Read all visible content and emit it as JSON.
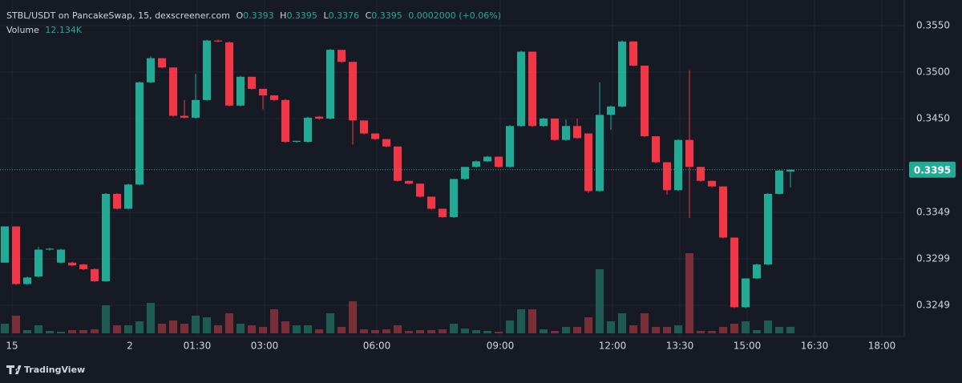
{
  "chart_data": {
    "type": "candlestick",
    "title": "STBL/USDT on PancakeSwap, 15, dexscreener.com",
    "legend": {
      "o_label": "O",
      "o": 0.3393,
      "h_label": "H",
      "h": 0.3395,
      "l_label": "L",
      "l": 0.3376,
      "c_label": "C",
      "c": 0.3395,
      "change": "0.0002000 (+0.06%)"
    },
    "volume_name": "Volume",
    "volume_value_label": "12.134K",
    "attribution": "TradingView",
    "last_price": 0.3395,
    "colors": {
      "up": "#22ab94",
      "down": "#f23645",
      "up_volume": "#1d5b53",
      "down_volume": "#7a2e38"
    },
    "open": [
      0.3295,
      0.3334,
      0.3272,
      0.328,
      0.3309,
      0.3295,
      0.3295,
      0.3293,
      0.3288,
      0.3275,
      0.3369,
      0.3353,
      0.3379,
      0.3489,
      0.3515,
      0.3505,
      0.3453,
      0.3451,
      0.347,
      0.3534,
      0.3532,
      0.3464,
      0.3495,
      0.3482,
      0.3475,
      0.347,
      0.3425,
      0.3425,
      0.3452,
      0.345,
      0.3524,
      0.3511,
      0.3448,
      0.3434,
      0.3428,
      0.342,
      0.3383,
      0.338,
      0.3366,
      0.3353,
      0.3344,
      0.3385,
      0.3398,
      0.3404,
      0.3409,
      0.3398,
      0.3442,
      0.3522,
      0.3442,
      0.345,
      0.3427,
      0.3442,
      0.3434,
      0.3372,
      0.3454,
      0.3463,
      0.3533,
      0.3507,
      0.3431,
      0.3403,
      0.3373,
      0.3427,
      0.3398,
      0.3383,
      0.3377,
      0.3322,
      0.3247,
      0.3278,
      0.3293,
      0.3369,
      0.3393
    ],
    "high": [
      0.3334,
      0.3334,
      0.328,
      0.3312,
      0.3311,
      0.331,
      0.3296,
      0.3294,
      0.3289,
      0.337,
      0.337,
      0.338,
      0.349,
      0.3517,
      0.3515,
      0.3505,
      0.347,
      0.3498,
      0.3535,
      0.3535,
      0.3533,
      0.3496,
      0.3495,
      0.3482,
      0.3475,
      0.3471,
      0.3426,
      0.3452,
      0.3453,
      0.3525,
      0.3524,
      0.3511,
      0.3448,
      0.3434,
      0.3428,
      0.342,
      0.3383,
      0.338,
      0.3366,
      0.3353,
      0.3385,
      0.3398,
      0.3405,
      0.341,
      0.3409,
      0.3443,
      0.3523,
      0.3522,
      0.3451,
      0.345,
      0.3449,
      0.345,
      0.3434,
      0.3489,
      0.3464,
      0.3534,
      0.3533,
      0.3507,
      0.3431,
      0.3403,
      0.3428,
      0.3502,
      0.3398,
      0.3383,
      0.3377,
      0.3322,
      0.3278,
      0.3294,
      0.337,
      0.3395,
      0.3395
    ],
    "low": [
      0.3295,
      0.3271,
      0.3271,
      0.3279,
      0.3308,
      0.3294,
      0.3291,
      0.3287,
      0.3274,
      0.3274,
      0.3352,
      0.3352,
      0.3378,
      0.3488,
      0.3504,
      0.3452,
      0.345,
      0.345,
      0.3469,
      0.3532,
      0.3463,
      0.3463,
      0.3481,
      0.346,
      0.3469,
      0.3424,
      0.3424,
      0.3424,
      0.3449,
      0.3449,
      0.351,
      0.3422,
      0.3433,
      0.3427,
      0.3419,
      0.3382,
      0.3379,
      0.3365,
      0.3352,
      0.3343,
      0.3343,
      0.3384,
      0.3397,
      0.3403,
      0.3397,
      0.3397,
      0.3441,
      0.3441,
      0.3441,
      0.3426,
      0.3426,
      0.3428,
      0.337,
      0.3371,
      0.3438,
      0.3462,
      0.3506,
      0.343,
      0.3402,
      0.3368,
      0.3372,
      0.3343,
      0.3382,
      0.3376,
      0.3321,
      0.3246,
      0.3246,
      0.3277,
      0.3292,
      0.3368,
      0.3376
    ],
    "close": [
      0.3334,
      0.3272,
      0.3279,
      0.3309,
      0.331,
      0.3309,
      0.3292,
      0.3288,
      0.3275,
      0.3369,
      0.3353,
      0.3379,
      0.3489,
      0.3515,
      0.3505,
      0.3453,
      0.3451,
      0.347,
      0.3534,
      0.3533,
      0.3464,
      0.3495,
      0.3482,
      0.3475,
      0.347,
      0.3425,
      0.3426,
      0.3451,
      0.345,
      0.3524,
      0.3511,
      0.3448,
      0.3434,
      0.3428,
      0.342,
      0.3383,
      0.338,
      0.3366,
      0.3353,
      0.3344,
      0.3385,
      0.3398,
      0.3404,
      0.3409,
      0.3398,
      0.3442,
      0.3522,
      0.3442,
      0.345,
      0.3427,
      0.3442,
      0.3429,
      0.3372,
      0.3454,
      0.3463,
      0.3533,
      0.3507,
      0.3431,
      0.3403,
      0.3373,
      0.3427,
      0.3398,
      0.3383,
      0.3377,
      0.3322,
      0.3247,
      0.3278,
      0.3293,
      0.3369,
      0.3394,
      0.3395
    ],
    "volume": [
      18,
      33,
      6,
      15,
      4.5,
      3,
      6,
      6,
      7.5,
      52.5,
      15,
      15,
      22.5,
      57,
      18,
      24,
      18,
      33,
      30,
      15,
      37.5,
      18,
      15,
      12,
      45,
      22.5,
      15,
      15,
      7.5,
      37.5,
      12,
      60,
      7.5,
      6,
      7.5,
      15,
      4.5,
      6,
      6,
      7.5,
      18,
      9,
      6,
      4.5,
      3,
      24,
      45,
      45,
      7.5,
      4.5,
      12,
      12,
      30,
      120,
      22.5,
      37.5,
      15,
      37.5,
      12,
      12,
      15,
      150,
      4.5,
      4.5,
      12,
      18,
      22.5,
      6,
      24,
      12,
      12.134
    ],
    "ylim": [
      0.32155,
      0.35776
    ],
    "yticks": [
      {
        "value": 0.355,
        "label": "0.3550"
      },
      {
        "value": 0.35,
        "label": "0.3500"
      },
      {
        "value": 0.345,
        "label": "0.3450"
      },
      0.3349,
      0.3299,
      0.3249
    ],
    "xlim": [
      -0.43,
      80.14
    ],
    "xticks": [
      {
        "value": 0.64,
        "label": "15"
      },
      {
        "value": 11.14,
        "label": "2"
      },
      {
        "value": 17.14,
        "label": "01:30"
      },
      {
        "value": 23.14,
        "label": "03:00"
      },
      {
        "value": 33.14,
        "label": "06:00"
      },
      {
        "value": 44.14,
        "label": "09:00"
      },
      {
        "value": 54.14,
        "label": "12:00"
      },
      {
        "value": 60.14,
        "label": "13:30"
      },
      {
        "value": 66.14,
        "label": "15:00"
      },
      {
        "value": 72.14,
        "label": "16:30"
      },
      {
        "value": 78.14,
        "label": "18:00"
      }
    ],
    "grid": true
  }
}
